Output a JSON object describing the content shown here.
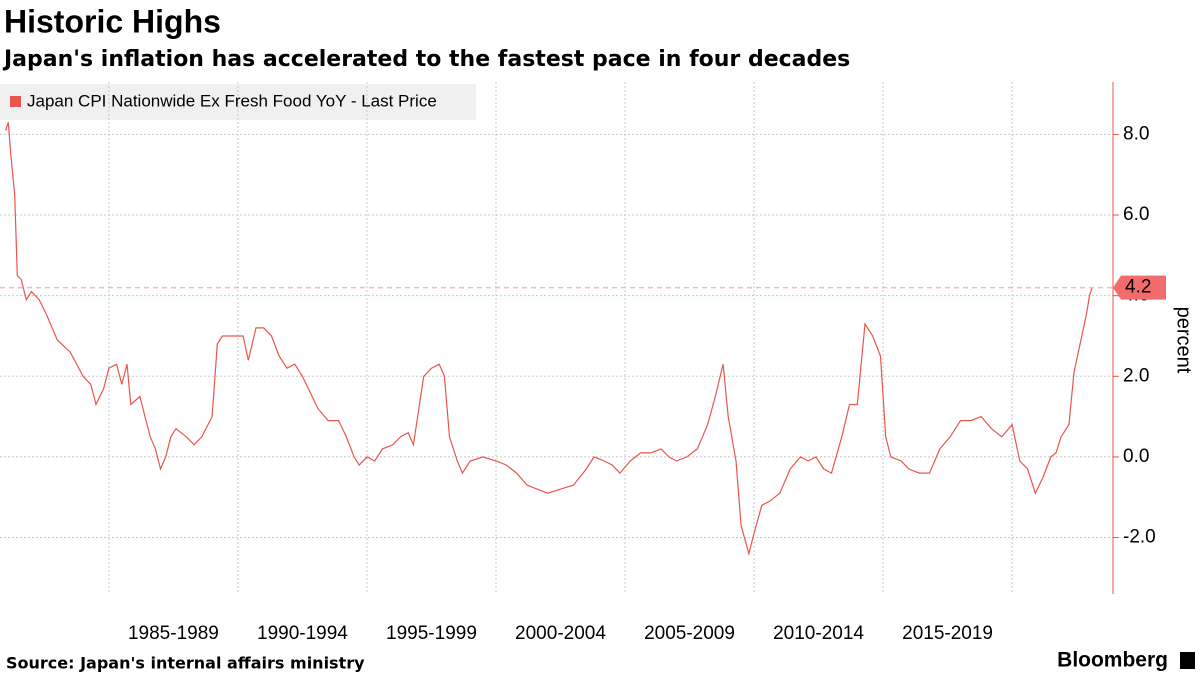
{
  "chart_data": {
    "type": "line",
    "title": "Historic Highs",
    "subtitle": "Japan's inflation has accelerated to the fastest pace in four decades",
    "y_axis_label": "percent",
    "source": "Source: Japan's internal affairs ministry",
    "brand": "Bloomberg",
    "xlim": [
      1980.78,
      2023.91
    ],
    "xticks": [
      1985,
      1990,
      1995,
      2000,
      2005,
      2010,
      2015,
      2020
    ],
    "x_period_labels": [
      "1985-1989",
      "1990-1994",
      "1995-1999",
      "2000-2004",
      "2005-2009",
      "2010-2014",
      "2015-2019"
    ],
    "ylim": [
      -3.4,
      9.3
    ],
    "yticks": [
      {
        "value": -2,
        "label": "-2.0"
      },
      {
        "value": 0,
        "label": "0.0"
      },
      {
        "value": 2,
        "label": "2.0"
      },
      {
        "value": 4,
        "label": "4.0"
      },
      {
        "value": 6,
        "label": "6.0"
      },
      {
        "value": 8,
        "label": "8.0"
      }
    ],
    "grid": true,
    "legend": "top-left",
    "x": [
      1981.0,
      1981.1,
      1981.2,
      1981.35,
      1981.45,
      1981.6,
      1981.8,
      1982.0,
      1982.3,
      1982.6,
      1983.0,
      1983.5,
      1984.0,
      1984.3,
      1984.5,
      1984.8,
      1985.0,
      1985.3,
      1985.5,
      1985.7,
      1985.85,
      1986.2,
      1986.4,
      1986.6,
      1986.8,
      1987.0,
      1987.2,
      1987.4,
      1987.6,
      1988.0,
      1988.3,
      1988.6,
      1989.0,
      1989.2,
      1989.4,
      1990.0,
      1990.2,
      1990.4,
      1990.7,
      1991.0,
      1991.3,
      1991.6,
      1991.9,
      1992.2,
      1992.5,
      1992.8,
      1993.1,
      1993.5,
      1993.9,
      1994.2,
      1994.5,
      1994.7,
      1995.0,
      1995.3,
      1995.6,
      1996.0,
      1996.3,
      1996.6,
      1996.8,
      1997.2,
      1997.5,
      1997.8,
      1998.0,
      1998.2,
      1998.5,
      1998.7,
      1999.0,
      1999.5,
      2000.0,
      2000.4,
      2000.8,
      2001.2,
      2001.6,
      2002.0,
      2002.5,
      2003.0,
      2003.5,
      2003.8,
      2004.2,
      2004.5,
      2004.8,
      2005.2,
      2005.6,
      2006.0,
      2006.4,
      2006.7,
      2007.0,
      2007.4,
      2007.8,
      2008.2,
      2008.5,
      2008.8,
      2009.0,
      2009.3,
      2009.5,
      2009.8,
      2010.0,
      2010.3,
      2010.6,
      2011.0,
      2011.4,
      2011.8,
      2012.1,
      2012.4,
      2012.7,
      2013.0,
      2013.4,
      2013.7,
      2014.0,
      2014.3,
      2014.6,
      2014.9,
      2015.1,
      2015.3,
      2015.7,
      2016.0,
      2016.4,
      2016.8,
      2017.2,
      2017.6,
      2018.0,
      2018.4,
      2018.8,
      2019.2,
      2019.6,
      2020.0,
      2020.3,
      2020.6,
      2020.9,
      2021.2,
      2021.5,
      2021.7,
      2021.9,
      2022.2,
      2022.4,
      2022.7,
      2022.9,
      2023.0,
      2023.1
    ],
    "series": [
      {
        "name": "Japan CPI Nationwide Ex Fresh Food YoY - Last Price",
        "color": "#e8564c",
        "values": [
          8.1,
          8.3,
          7.5,
          6.5,
          4.5,
          4.4,
          3.9,
          4.1,
          3.9,
          3.5,
          2.9,
          2.6,
          2.0,
          1.8,
          1.3,
          1.7,
          2.2,
          2.3,
          1.8,
          2.3,
          1.3,
          1.5,
          1.0,
          0.5,
          0.2,
          -0.3,
          0.0,
          0.5,
          0.7,
          0.5,
          0.3,
          0.5,
          1.0,
          2.8,
          3.0,
          3.0,
          3.0,
          2.4,
          3.2,
          3.2,
          3.0,
          2.5,
          2.2,
          2.3,
          2.0,
          1.6,
          1.2,
          0.9,
          0.9,
          0.5,
          0.0,
          -0.2,
          0.0,
          -0.1,
          0.2,
          0.3,
          0.5,
          0.6,
          0.3,
          2.0,
          2.2,
          2.3,
          2.0,
          0.5,
          -0.1,
          -0.4,
          -0.1,
          0.0,
          -0.1,
          -0.2,
          -0.4,
          -0.7,
          -0.8,
          -0.9,
          -0.8,
          -0.7,
          -0.3,
          0.0,
          -0.1,
          -0.2,
          -0.4,
          -0.1,
          0.1,
          0.1,
          0.2,
          0.0,
          -0.1,
          0.0,
          0.2,
          0.8,
          1.5,
          2.3,
          1.0,
          -0.1,
          -1.7,
          -2.4,
          -1.9,
          -1.2,
          -1.1,
          -0.9,
          -0.3,
          0.0,
          -0.1,
          0.0,
          -0.3,
          -0.4,
          0.5,
          1.3,
          1.3,
          3.3,
          3.0,
          2.5,
          0.5,
          0.0,
          -0.1,
          -0.3,
          -0.4,
          -0.4,
          0.2,
          0.5,
          0.9,
          0.9,
          1.0,
          0.7,
          0.5,
          0.8,
          -0.1,
          -0.3,
          -0.9,
          -0.5,
          0.0,
          0.1,
          0.5,
          0.8,
          2.1,
          3.0,
          3.6,
          4.0,
          4.2
        ]
      }
    ]
  }
}
